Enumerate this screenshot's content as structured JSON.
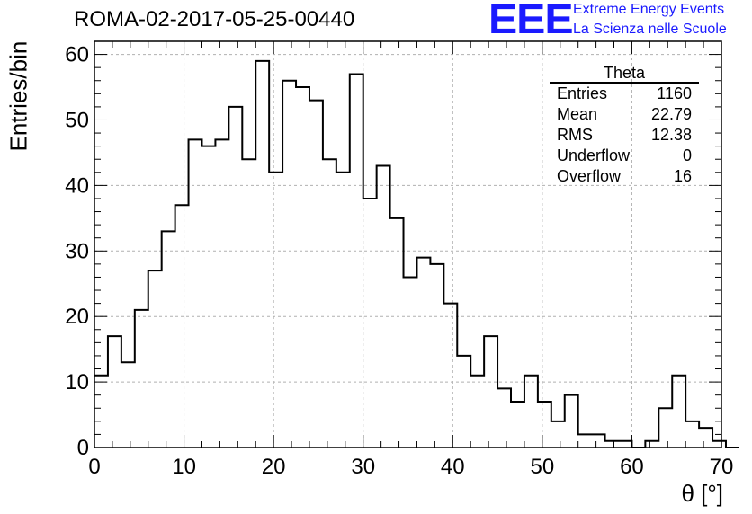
{
  "chart_data": {
    "type": "histogram",
    "title": "ROMA-02-2017-05-25-00440",
    "xlabel": "θ [°]",
    "ylabel": "Entries/bin",
    "xlim": [
      0,
      70
    ],
    "ylim": [
      0,
      62
    ],
    "bin_width": 1.5,
    "bin_start": 0,
    "values": [
      11,
      17,
      13,
      21,
      27,
      33,
      37,
      47,
      46,
      47,
      52,
      44,
      59,
      42,
      56,
      55,
      53,
      44,
      42,
      57,
      38,
      43,
      35,
      26,
      29,
      28,
      22,
      14,
      11,
      17,
      9,
      7,
      11,
      7,
      4,
      8,
      2,
      2,
      1,
      1,
      0,
      1,
      6,
      11,
      4,
      3,
      1,
      0
    ],
    "xticks": [
      "0",
      "10",
      "20",
      "30",
      "40",
      "50",
      "60",
      "70"
    ],
    "yticks": [
      "0",
      "10",
      "20",
      "30",
      "40",
      "50",
      "60"
    ],
    "grid": true,
    "line_color": "#000000",
    "grid_color": "#b0b0b0"
  },
  "logo": {
    "mark": "EEE",
    "line1": "Extreme Energy Events",
    "line2": "La Scienza nelle Scuole",
    "color": "#1a1aff"
  },
  "stats": {
    "title": "Theta",
    "rows": [
      {
        "label": "Entries",
        "value": "1160"
      },
      {
        "label": "Mean",
        "value": "22.79"
      },
      {
        "label": "RMS",
        "value": "12.38"
      },
      {
        "label": "Underflow",
        "value": "0"
      },
      {
        "label": "Overflow",
        "value": "16"
      }
    ]
  }
}
